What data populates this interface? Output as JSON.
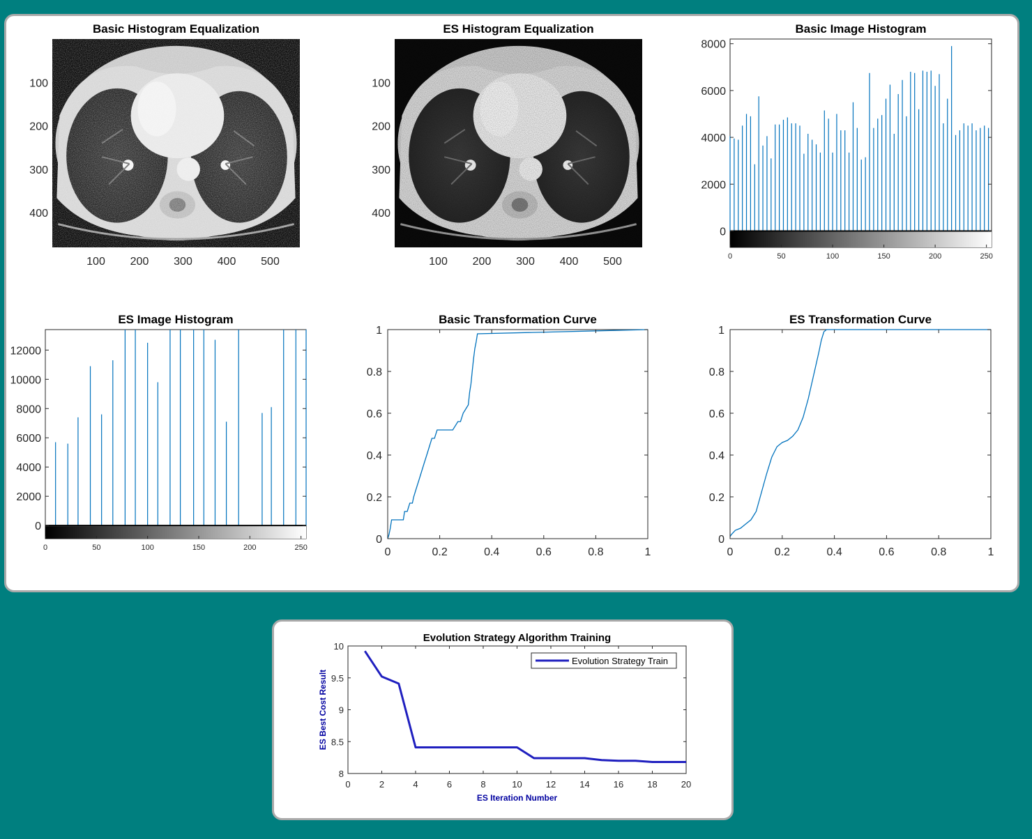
{
  "colors": {
    "background": "#007f7f",
    "panel": "#ffffff",
    "panel_border": "#a9a9a9",
    "series": "#0072bd",
    "train_line": "#1f1fbf",
    "train_label": "#0000a0"
  },
  "chart_data": [
    {
      "type": "image",
      "title": "Basic Histogram Equalization",
      "content": "CT chest scan (basic histogram equalized)",
      "x_ticks": [
        "100",
        "200",
        "300",
        "400",
        "500"
      ],
      "y_ticks": [
        "100",
        "200",
        "300",
        "400"
      ],
      "xlim": [
        0,
        568
      ],
      "ylim": [
        0,
        480
      ]
    },
    {
      "type": "image",
      "title": "ES Histogram Equalization",
      "content": "CT chest scan (ES histogram equalized)",
      "x_ticks": [
        "100",
        "200",
        "300",
        "400",
        "500"
      ],
      "y_ticks": [
        "100",
        "200",
        "300",
        "400"
      ],
      "xlim": [
        0,
        568
      ],
      "ylim": [
        0,
        480
      ]
    },
    {
      "type": "bar",
      "title": "Basic Image Histogram",
      "xlim": [
        0,
        255
      ],
      "ylim": [
        -700,
        8200
      ],
      "y_ticks": [
        "0",
        "2000",
        "4000",
        "6000",
        "8000"
      ],
      "x_ticks": [
        "0",
        "50",
        "100",
        "150",
        "200",
        "250"
      ],
      "colorbar": "grayscale",
      "x": [
        0,
        4,
        8,
        12,
        16,
        20,
        24,
        28,
        32,
        36,
        40,
        44,
        48,
        52,
        56,
        60,
        64,
        68,
        72,
        76,
        80,
        84,
        88,
        92,
        96,
        100,
        104,
        108,
        112,
        116,
        120,
        124,
        128,
        132,
        136,
        140,
        144,
        148,
        152,
        156,
        160,
        164,
        168,
        172,
        176,
        180,
        184,
        188,
        192,
        196,
        200,
        204,
        208,
        212,
        216,
        220,
        224,
        228,
        232,
        236,
        240,
        244,
        248,
        252
      ],
      "values": [
        4050,
        3950,
        3900,
        4500,
        5000,
        4900,
        2850,
        5750,
        3650,
        4050,
        3100,
        4550,
        4550,
        4750,
        4850,
        4600,
        4600,
        4500,
        3300,
        4150,
        3900,
        3700,
        3350,
        5150,
        4800,
        3350,
        5000,
        4300,
        4300,
        3350,
        5500,
        4400,
        3050,
        3150,
        6750,
        4400,
        4800,
        4950,
        5650,
        6250,
        4150,
        5850,
        6450,
        4900,
        6800,
        6750,
        5200,
        6850,
        6800,
        6850,
        6200,
        6700,
        4600,
        5650,
        7900,
        4100,
        4300,
        4600,
        4500,
        4600,
        4300,
        4400,
        4500,
        4400
      ]
    },
    {
      "type": "bar",
      "title": "ES Image Histogram",
      "xlim": [
        0,
        255
      ],
      "ylim": [
        -900,
        13400
      ],
      "y_ticks": [
        "0",
        "2000",
        "4000",
        "6000",
        "8000",
        "10000",
        "12000"
      ],
      "x_ticks": [
        "0",
        "50",
        "100",
        "150",
        "200",
        "250"
      ],
      "colorbar": "grayscale",
      "x": [
        10,
        22,
        32,
        44,
        55,
        66,
        78,
        88,
        100,
        110,
        122,
        132,
        145,
        155,
        166,
        177,
        189,
        201,
        212,
        221,
        233,
        245,
        255
      ],
      "values": [
        5700,
        5600,
        7400,
        10900,
        7600,
        11300,
        13400,
        13400,
        12500,
        9800,
        13400,
        13400,
        13400,
        13400,
        12700,
        7100,
        13400,
        null,
        7700,
        8100,
        13400,
        13400,
        13400
      ]
    },
    {
      "type": "line",
      "title": "Basic Transformation Curve",
      "xlim": [
        0,
        1
      ],
      "ylim": [
        0,
        1
      ],
      "x_ticks": [
        "0",
        "0.2",
        "0.4",
        "0.6",
        "0.8",
        "1"
      ],
      "y_ticks": [
        "0",
        "0.2",
        "0.4",
        "0.6",
        "0.8",
        "1"
      ],
      "x": [
        0,
        0.005,
        0.01,
        0.015,
        0.02,
        0.04,
        0.06,
        0.065,
        0.075,
        0.085,
        0.095,
        0.1,
        0.11,
        0.12,
        0.13,
        0.14,
        0.15,
        0.16,
        0.17,
        0.18,
        0.19,
        0.2,
        0.25,
        0.27,
        0.28,
        0.29,
        0.3,
        0.31,
        0.315,
        0.32,
        0.325,
        0.33,
        0.335,
        0.34,
        0.345,
        1
      ],
      "y": [
        0,
        0.02,
        0.05,
        0.09,
        0.09,
        0.09,
        0.09,
        0.13,
        0.13,
        0.17,
        0.17,
        0.2,
        0.24,
        0.28,
        0.32,
        0.36,
        0.4,
        0.44,
        0.48,
        0.48,
        0.52,
        0.52,
        0.52,
        0.56,
        0.56,
        0.6,
        0.62,
        0.64,
        0.7,
        0.74,
        0.8,
        0.86,
        0.91,
        0.94,
        0.98,
        1
      ]
    },
    {
      "type": "line",
      "title": "ES Transformation Curve",
      "xlim": [
        0,
        1
      ],
      "ylim": [
        0,
        1
      ],
      "x_ticks": [
        "0",
        "0.2",
        "0.4",
        "0.6",
        "0.8",
        "1"
      ],
      "y_ticks": [
        "0",
        "0.2",
        "0.4",
        "0.6",
        "0.8",
        "1"
      ],
      "x": [
        0,
        0.005,
        0.02,
        0.04,
        0.06,
        0.08,
        0.1,
        0.12,
        0.14,
        0.16,
        0.18,
        0.2,
        0.22,
        0.24,
        0.26,
        0.28,
        0.3,
        0.32,
        0.34,
        0.35,
        0.36,
        0.37,
        1
      ],
      "y": [
        0.01,
        0.02,
        0.04,
        0.05,
        0.07,
        0.09,
        0.13,
        0.22,
        0.31,
        0.39,
        0.44,
        0.46,
        0.47,
        0.49,
        0.52,
        0.58,
        0.67,
        0.78,
        0.89,
        0.95,
        0.99,
        1,
        1
      ]
    },
    {
      "type": "line",
      "title": "Evolution Strategy Algorithm Training",
      "xlabel": "ES Iteration Number",
      "ylabel": "ES Best Cost Result",
      "xlim": [
        0,
        20
      ],
      "ylim": [
        8,
        10
      ],
      "x_ticks": [
        "0",
        "2",
        "4",
        "6",
        "8",
        "10",
        "12",
        "14",
        "16",
        "18",
        "20"
      ],
      "y_ticks": [
        "8",
        "8.5",
        "9",
        "9.5",
        "10"
      ],
      "legend": "top-right",
      "series": [
        {
          "name": "Evolution Strategy Train",
          "x": [
            1,
            2,
            3,
            4,
            5,
            6,
            7,
            8,
            9,
            10,
            11,
            12,
            13,
            14,
            15,
            16,
            17,
            18,
            19,
            20
          ],
          "y": [
            9.92,
            9.52,
            9.41,
            8.41,
            8.41,
            8.41,
            8.41,
            8.41,
            8.41,
            8.41,
            8.24,
            8.24,
            8.24,
            8.24,
            8.21,
            8.2,
            8.2,
            8.18,
            8.18,
            8.18
          ]
        }
      ]
    }
  ]
}
